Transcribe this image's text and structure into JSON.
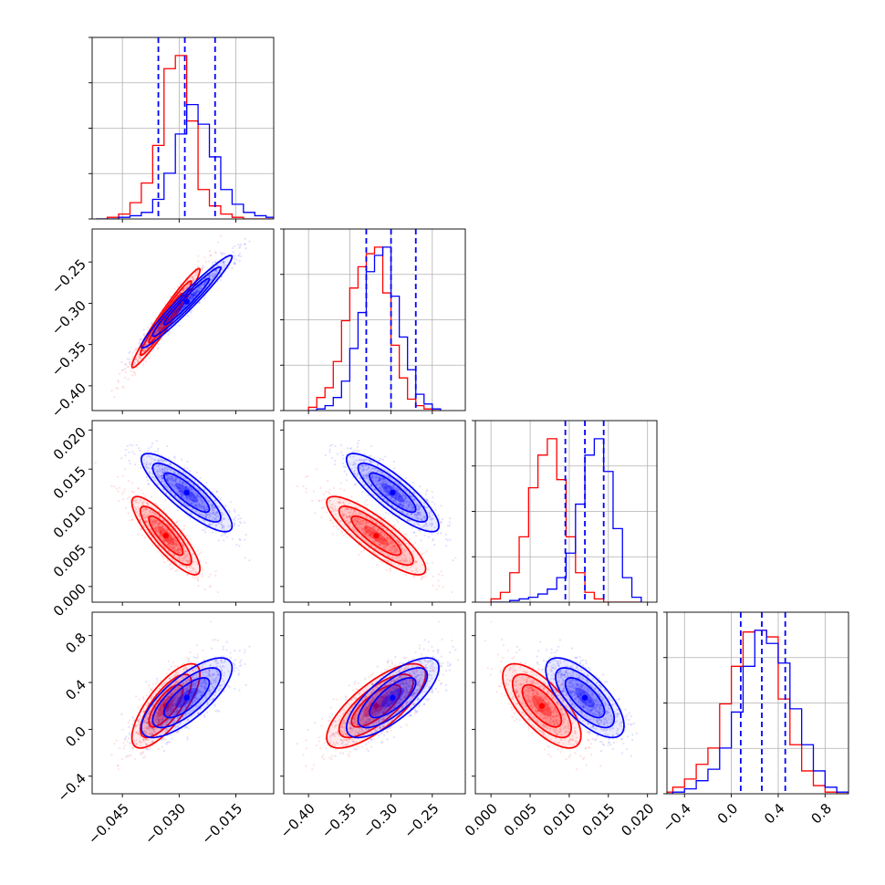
{
  "chart_data": {
    "type": "corner",
    "parameters": 4,
    "grid": true,
    "series": [
      {
        "color": "#ff0000",
        "means": [
          -0.0335,
          -0.318,
          0.0065,
          0.2
        ],
        "sds": [
          0.0045,
          0.03,
          0.0025,
          0.18
        ],
        "corr": [
          [
            1.0,
            0.97,
            -0.85,
            0.75
          ],
          [
            0.97,
            1.0,
            -0.85,
            0.75
          ],
          [
            -0.85,
            -0.85,
            1.0,
            -0.7
          ],
          [
            0.75,
            0.75,
            -0.7,
            1.0
          ]
        ],
        "hist_bins": [
          [
            -0.052,
            -0.049,
            -0.046,
            -0.043,
            -0.04,
            -0.037,
            -0.034,
            -0.031,
            -0.028,
            -0.025,
            -0.022,
            -0.019,
            -0.016,
            -0.013,
            -0.01,
            -0.007,
            -0.004
          ],
          [
            -0.4,
            -0.39,
            -0.38,
            -0.37,
            -0.36,
            -0.35,
            -0.34,
            -0.33,
            -0.32,
            -0.31,
            -0.3,
            -0.29,
            -0.28,
            -0.27,
            -0.26,
            -0.25,
            -0.24
          ],
          [
            0.0,
            0.0012,
            0.0024,
            0.0036,
            0.0048,
            0.006,
            0.0072,
            0.0084,
            0.0096,
            0.0108,
            0.012,
            0.0132,
            0.0144,
            0.0156,
            0.0168,
            0.018,
            0.0192
          ],
          [
            -0.6,
            -0.5,
            -0.4,
            -0.3,
            -0.2,
            -0.1,
            0.0,
            0.1,
            0.2,
            0.3,
            0.4,
            0.5,
            0.6,
            0.7,
            0.8,
            0.9,
            1.0
          ]
        ],
        "hist_counts": [
          [
            0,
            1,
            3,
            10,
            22,
            45,
            92,
            100,
            60,
            18,
            8,
            3,
            1,
            0,
            0,
            0
          ],
          [
            2,
            8,
            14,
            30,
            55,
            75,
            88,
            96,
            100,
            72,
            40,
            20,
            7,
            3,
            1,
            0
          ],
          [
            2,
            6,
            18,
            40,
            70,
            90,
            100,
            75,
            40,
            18,
            6,
            2,
            0,
            0,
            0,
            0
          ],
          [
            1,
            4,
            9,
            18,
            28,
            55,
            78,
            99,
            100,
            96,
            58,
            30,
            14,
            5,
            1,
            0
          ]
        ]
      },
      {
        "color": "#0000ff",
        "means": [
          -0.028,
          -0.298,
          0.012,
          0.27
        ],
        "sds": [
          0.006,
          0.028,
          0.0025,
          0.17
        ],
        "corr": [
          [
            1.0,
            0.97,
            -0.85,
            0.75
          ],
          [
            0.97,
            1.0,
            -0.85,
            0.75
          ],
          [
            -0.85,
            -0.85,
            1.0,
            -0.7
          ],
          [
            0.75,
            0.75,
            -0.7,
            1.0
          ]
        ],
        "hist_bins": [
          [
            -0.052,
            -0.049,
            -0.046,
            -0.043,
            -0.04,
            -0.037,
            -0.034,
            -0.031,
            -0.028,
            -0.025,
            -0.022,
            -0.019,
            -0.016,
            -0.013,
            -0.01,
            -0.007,
            -0.004
          ],
          [
            -0.4,
            -0.39,
            -0.38,
            -0.37,
            -0.36,
            -0.35,
            -0.34,
            -0.33,
            -0.32,
            -0.31,
            -0.3,
            -0.29,
            -0.28,
            -0.27,
            -0.26,
            -0.25,
            -0.24
          ],
          [
            0.0,
            0.0012,
            0.0024,
            0.0036,
            0.0048,
            0.006,
            0.0072,
            0.0084,
            0.0096,
            0.0108,
            0.012,
            0.0132,
            0.0144,
            0.0156,
            0.0168,
            0.018,
            0.0192
          ],
          [
            -0.6,
            -0.5,
            -0.4,
            -0.3,
            -0.2,
            -0.1,
            0.0,
            0.1,
            0.2,
            0.3,
            0.4,
            0.5,
            0.6,
            0.7,
            0.8,
            0.9,
            1.0
          ]
        ],
        "hist_counts": [
          [
            0,
            0,
            1,
            2,
            4,
            12,
            28,
            52,
            70,
            58,
            38,
            18,
            9,
            4,
            2,
            1
          ],
          [
            0,
            1,
            3,
            8,
            18,
            38,
            60,
            85,
            95,
            100,
            70,
            45,
            25,
            10,
            4,
            1
          ],
          [
            0,
            0,
            1,
            2,
            3,
            5,
            8,
            15,
            30,
            60,
            90,
            100,
            80,
            45,
            15,
            3
          ],
          [
            0,
            1,
            3,
            8,
            15,
            28,
            50,
            78,
            100,
            92,
            80,
            52,
            30,
            14,
            4,
            1
          ]
        ],
        "quantiles": [
          [
            -0.0355,
            -0.0285,
            -0.0205
          ],
          [
            -0.33,
            -0.3,
            -0.27
          ],
          [
            0.0095,
            0.012,
            0.0144
          ],
          [
            0.08,
            0.26,
            0.46
          ]
        ]
      }
    ],
    "axes": [
      {
        "range": [
          -0.053,
          -0.005
        ],
        "ticks": [
          -0.045,
          -0.03,
          -0.015
        ],
        "tick_labels": [
          "−0.045",
          "−0.030",
          "−0.015"
        ]
      },
      {
        "range": [
          -0.43,
          -0.21
        ],
        "ticks": [
          -0.4,
          -0.35,
          -0.3,
          -0.25
        ],
        "tick_labels": [
          "−0.40",
          "−0.35",
          "−0.30",
          "−0.25"
        ]
      },
      {
        "range": [
          -0.002,
          0.0212
        ],
        "ticks": [
          0.0,
          0.005,
          0.01,
          0.015,
          0.02
        ],
        "tick_labels": [
          "0.000",
          "0.005",
          "0.010",
          "0.015",
          "0.020"
        ]
      },
      {
        "range": [
          -0.55,
          1.0
        ],
        "ticks": [
          -0.4,
          0.0,
          0.4,
          0.8
        ],
        "tick_labels": [
          "−0.4",
          "0.0",
          "0.4",
          "0.8"
        ]
      }
    ]
  }
}
